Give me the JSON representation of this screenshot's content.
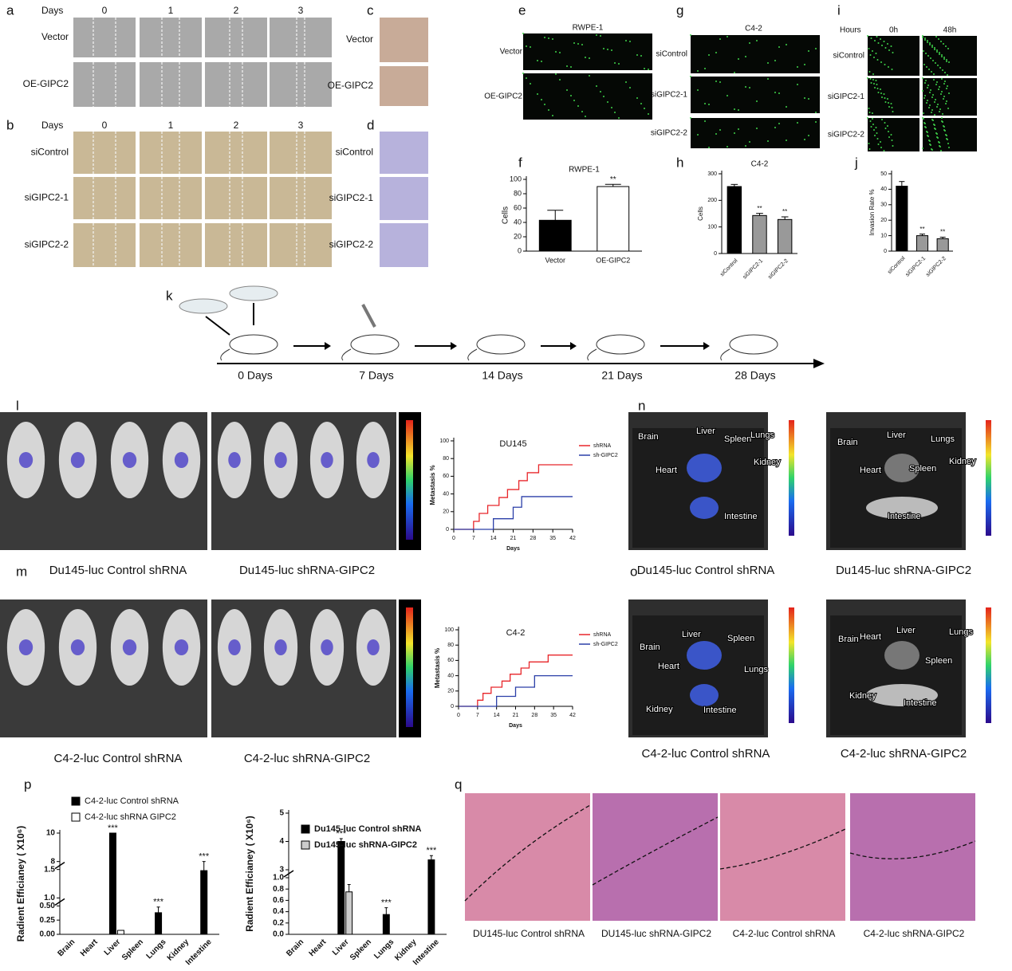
{
  "panels": {
    "a": {
      "label": "a",
      "header": "Days",
      "columns": [
        "0",
        "1",
        "2",
        "3"
      ],
      "rows": [
        "Vector",
        "OE-GIPC2"
      ]
    },
    "b": {
      "label": "b",
      "header": "Days",
      "columns": [
        "0",
        "1",
        "2",
        "3"
      ],
      "rows": [
        "siControl",
        "siGIPC2-1",
        "siGIPC2-2"
      ]
    },
    "c": {
      "label": "c",
      "rows": [
        "Vector",
        "OE-GIPC2"
      ]
    },
    "d": {
      "label": "d",
      "rows": [
        "siControl",
        "siGIPC2-1",
        "siGIPC2-2"
      ]
    },
    "e": {
      "label": "e",
      "title": "RWPE-1",
      "rows": [
        "Vector",
        "OE-GIPC2"
      ]
    },
    "g": {
      "label": "g",
      "title": "C4-2",
      "rows": [
        "siControl",
        "siGIPC2-1",
        "siGIPC2-2"
      ]
    },
    "i": {
      "label": "i",
      "header": "Hours",
      "columns": [
        "0h",
        "48h"
      ],
      "rows": [
        "siControl",
        "siGIPC2-1",
        "siGIPC2-2"
      ]
    },
    "k": {
      "label": "k",
      "timepoints": [
        "0 Days",
        "7 Days",
        "14 Days",
        "21 Days",
        "28 Days"
      ]
    },
    "l": {
      "label": "l",
      "captions": [
        "Du145-luc Control shRNA",
        "Du145-luc shRNA-GIPC2"
      ]
    },
    "m": {
      "label": "m",
      "captions": [
        "C4-2-luc Control shRNA",
        "C4-2-luc shRNA-GIPC2"
      ]
    },
    "n": {
      "label": "n",
      "captions": [
        "Du145-luc Control shRNA",
        "Du145-luc shRNA-GIPC2"
      ],
      "organs": [
        [
          "Brain",
          "Liver",
          "Spleen",
          "Lungs",
          "Heart",
          "Kidney",
          "Intestine"
        ],
        [
          "Brain",
          "Liver",
          "Lungs",
          "Heart",
          "Spleen",
          "Kidney",
          "Intestine"
        ]
      ]
    },
    "o": {
      "label": "o",
      "captions": [
        "C4-2-luc Control shRNA",
        "C4-2-luc shRNA-GIPC2"
      ],
      "organs": [
        [
          "Brain",
          "Liver",
          "Spleen",
          "Heart",
          "Lungs",
          "Kidney",
          "Intestine"
        ],
        [
          "Brain",
          "Heart",
          "Liver",
          "Lungs",
          "Spleen",
          "Kidney",
          "Intestine"
        ]
      ]
    },
    "p": {
      "label": "p"
    },
    "q": {
      "label": "q",
      "captions": [
        "DU145-luc Control shRNA",
        "DU145-luc shRNA-GIPC2",
        "C4-2-luc Control shRNA",
        "C4-2-luc shRNA-GIPC2"
      ]
    }
  },
  "chart_data": [
    {
      "type": "bar",
      "label": "f",
      "title": "RWPE-1",
      "y_label": "Cells",
      "categories": [
        "Vector",
        "OE-GIPC2"
      ],
      "values": [
        43,
        90
      ],
      "errors": [
        14,
        3
      ],
      "colors": [
        "#000000",
        "#ffffff"
      ],
      "significance": [
        null,
        "**"
      ],
      "ylim": [
        0,
        100
      ],
      "yticks": [
        0,
        20,
        40,
        60,
        80,
        100
      ]
    },
    {
      "type": "bar",
      "label": "h",
      "title": "C4-2",
      "y_label": "Cells",
      "categories": [
        "siControl",
        "siGIPC2-1",
        "siGIPC2-2"
      ],
      "values": [
        252,
        143,
        128
      ],
      "errors": [
        8,
        8,
        10
      ],
      "colors": [
        "#000000",
        "#999999",
        "#999999"
      ],
      "significance": [
        null,
        "**",
        "**"
      ],
      "ylim": [
        0,
        300
      ],
      "yticks": [
        0,
        100,
        200,
        300
      ],
      "xtick_rotation": 45
    },
    {
      "type": "bar",
      "label": "j",
      "y_label": "Invasion Rate %",
      "categories": [
        "siControl",
        "siGIPC2-1",
        "siGIPC2-2"
      ],
      "values": [
        42,
        10,
        8
      ],
      "errors": [
        3,
        1,
        1
      ],
      "colors": [
        "#000000",
        "#999999",
        "#999999"
      ],
      "significance": [
        null,
        "**",
        "**"
      ],
      "ylim": [
        0,
        50
      ],
      "yticks": [
        0,
        10,
        20,
        30,
        40,
        50
      ],
      "xtick_rotation": 45
    },
    {
      "type": "line",
      "drawstyle": "steps-post",
      "title": "DU145",
      "x_label": "Days",
      "y_label": "Metastasis %",
      "x": [
        0,
        7,
        9,
        12,
        14,
        16,
        19,
        21,
        23,
        24,
        26,
        30,
        42
      ],
      "series": [
        {
          "name": "shRNA",
          "color": "#e8262a",
          "values": [
            0,
            9,
            18,
            27,
            27,
            36,
            45,
            45,
            55,
            55,
            64,
            73,
            73
          ]
        },
        {
          "name": "sh-GIPC2",
          "color": "#2b3fa8",
          "values": [
            0,
            0,
            0,
            0,
            12,
            12,
            12,
            25,
            25,
            37,
            37,
            37,
            37
          ]
        }
      ],
      "xlim": [
        0,
        42
      ],
      "xticks": [
        0,
        7,
        14,
        21,
        28,
        35,
        42
      ],
      "ylim": [
        0,
        100
      ],
      "yticks": [
        0,
        20,
        40,
        60,
        80,
        100
      ]
    },
    {
      "type": "line",
      "drawstyle": "steps-post",
      "title": "C4-2",
      "x_label": "Days",
      "y_label": "Metastasis %",
      "x": [
        0,
        7,
        9,
        12,
        14,
        16,
        19,
        21,
        23,
        26,
        28,
        33,
        42
      ],
      "series": [
        {
          "name": "shRNA",
          "color": "#e8262a",
          "values": [
            0,
            8,
            17,
            25,
            25,
            33,
            42,
            42,
            50,
            58,
            58,
            67,
            67
          ]
        },
        {
          "name": "sh-GIPC2",
          "color": "#2b3fa8",
          "values": [
            0,
            0,
            0,
            0,
            13,
            13,
            13,
            25,
            25,
            25,
            40,
            40,
            40
          ]
        }
      ],
      "xlim": [
        0,
        42
      ],
      "xticks": [
        0,
        7,
        14,
        21,
        28,
        35,
        42
      ],
      "ylim": [
        0,
        100
      ],
      "yticks": [
        0,
        20,
        40,
        60,
        80,
        100
      ]
    },
    {
      "type": "bar",
      "y_label": "Radient Efficianey ( X10⁶)",
      "categories": [
        "Brain",
        "Heart",
        "Liver",
        "Spleen",
        "Lungs",
        "Kidney",
        "Intestine"
      ],
      "series": [
        {
          "name": "C4-2-luc Control shRNA",
          "color": "#000000",
          "values": [
            0,
            0,
            10,
            0,
            0.38,
            0,
            1.48
          ],
          "errors": [
            0,
            0,
            0,
            0,
            0.1,
            0,
            0.1
          ],
          "significance": [
            null,
            null,
            "***",
            null,
            "***",
            null,
            "***"
          ]
        },
        {
          "name": "C4-2-luc shRNA GIPC2",
          "color": "#ffffff",
          "values": [
            0,
            0,
            0.07,
            0,
            0,
            0,
            0
          ],
          "errors": [
            0,
            0,
            0,
            0,
            0,
            0,
            0
          ]
        }
      ],
      "ylim": [
        0,
        10
      ],
      "axis_breaks": [
        [
          0.5,
          1.0
        ],
        [
          1.5,
          8
        ]
      ],
      "yticks": [
        {
          "value": 0,
          "label": "0.00"
        },
        0.25,
        {
          "value": 0.5,
          "label": "0.50"
        },
        {
          "value": 1,
          "label": "1.0"
        },
        1.5,
        8,
        10
      ],
      "xtick_rotation": 45
    },
    {
      "type": "bar",
      "y_label": "Radient Efficianey ( X10⁶)",
      "categories": [
        "Brain",
        "Heart",
        "Liver",
        "Spleen",
        "Lungs",
        "Kidney",
        "Intestine"
      ],
      "series": [
        {
          "name": "Du145-luc Control  shRNA",
          "color": "#000000",
          "values": [
            0,
            0,
            4.0,
            0,
            0.35,
            0,
            3.35
          ],
          "errors": [
            0,
            0,
            0.1,
            0,
            0.12,
            0,
            0.15
          ],
          "significance": [
            null,
            null,
            "***",
            null,
            "***",
            null,
            "***"
          ]
        },
        {
          "name": "Du145-luc shRNA-GIPC2",
          "color": "#cccccc",
          "values": [
            0,
            0,
            0.75,
            0,
            0,
            0,
            0
          ],
          "errors": [
            0,
            0,
            0.13,
            0,
            0,
            0,
            0
          ]
        }
      ],
      "ylim": [
        0,
        5
      ],
      "axis_breaks": [
        [
          1.0,
          3
        ]
      ],
      "yticks": [
        {
          "value": 0,
          "label": "0.0"
        },
        0.2,
        0.4,
        0.6,
        0.8,
        {
          "value": 1,
          "label": "1.0"
        },
        3,
        4,
        5
      ],
      "xtick_rotation": 45
    }
  ]
}
